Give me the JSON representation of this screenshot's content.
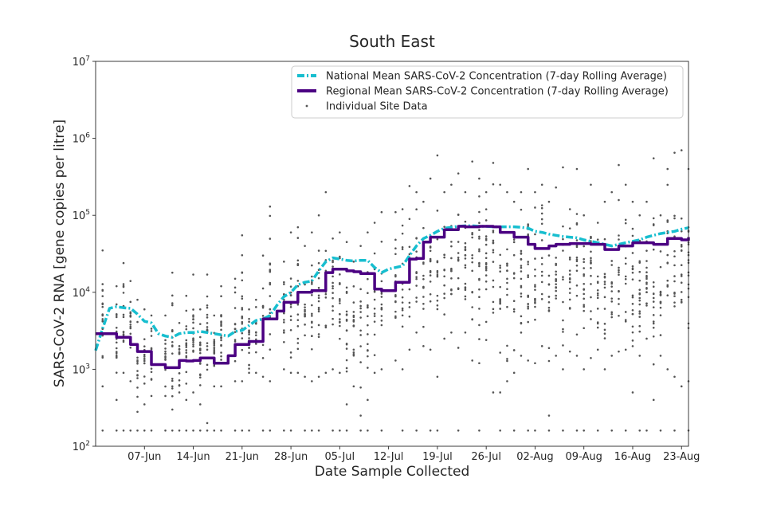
{
  "chart_data": {
    "type": "line",
    "title": "South East",
    "xlabel": "Date Sample Collected",
    "ylabel": "SARS-CoV-2 RNA [gene copies per litre]",
    "yscale": "log",
    "ylim": [
      100,
      10000000
    ],
    "y_ticks": [
      {
        "value": 100,
        "base": "10",
        "exp": "2"
      },
      {
        "value": 1000,
        "base": "10",
        "exp": "3"
      },
      {
        "value": 10000,
        "base": "10",
        "exp": "4"
      },
      {
        "value": 100000,
        "base": "10",
        "exp": "5"
      },
      {
        "value": 1000000,
        "base": "10",
        "exp": "6"
      },
      {
        "value": 10000000,
        "base": "10",
        "exp": "7"
      }
    ],
    "xlim_day": [
      0,
      85
    ],
    "x_ticks": [
      {
        "day": 7,
        "label": "07-Jun"
      },
      {
        "day": 14,
        "label": "14-Jun"
      },
      {
        "day": 21,
        "label": "21-Jun"
      },
      {
        "day": 28,
        "label": "28-Jun"
      },
      {
        "day": 35,
        "label": "05-Jul"
      },
      {
        "day": 42,
        "label": "12-Jul"
      },
      {
        "day": 49,
        "label": "19-Jul"
      },
      {
        "day": 56,
        "label": "26-Jul"
      },
      {
        "day": 63,
        "label": "02-Aug"
      },
      {
        "day": 70,
        "label": "09-Aug"
      },
      {
        "day": 77,
        "label": "16-Aug"
      },
      {
        "day": 84,
        "label": "23-Aug"
      }
    ],
    "x_note": "day 0 = 31-May",
    "legend": {
      "position": "top-right",
      "entries": [
        "National Mean SARS-CoV-2 Concentration (7-day Rolling Average)",
        "Regional Mean SARS-CoV-2 Concentration (7-day Rolling Average)",
        "Individual Site Data"
      ]
    },
    "series": [
      {
        "name": "National Mean SARS-CoV-2 Concentration (7-day Rolling Average)",
        "color": "#17becf",
        "style": "dashdot",
        "day": [
          0,
          1,
          2,
          3,
          4,
          5,
          6,
          7,
          8,
          9,
          10,
          11,
          12,
          13,
          14,
          15,
          16,
          17,
          18,
          19,
          20,
          21,
          22,
          23,
          24,
          25,
          26,
          27,
          28,
          29,
          30,
          31,
          32,
          33,
          34,
          35,
          36,
          37,
          38,
          39,
          40,
          41,
          42,
          43,
          44,
          45,
          46,
          47,
          48,
          49,
          50,
          51,
          52,
          53,
          54,
          55,
          56,
          57,
          58,
          59,
          60,
          61,
          62,
          63,
          64,
          65,
          66,
          67,
          68,
          69,
          70,
          71,
          72,
          73,
          74,
          75,
          76,
          77,
          78,
          79,
          80,
          81,
          82,
          83,
          84,
          85
        ],
        "values": [
          1750,
          3400,
          6200,
          6500,
          6300,
          6200,
          5200,
          4200,
          4000,
          2900,
          2700,
          2600,
          2900,
          3000,
          3000,
          3100,
          3000,
          2900,
          2800,
          2700,
          3100,
          3200,
          3700,
          4300,
          4500,
          5000,
          6800,
          8800,
          10000,
          12500,
          13500,
          14000,
          19000,
          25000,
          28000,
          27000,
          26000,
          25500,
          26000,
          26000,
          21000,
          18000,
          20000,
          21000,
          22000,
          30000,
          40000,
          50000,
          55000,
          62000,
          68000,
          70000,
          72000,
          73000,
          73000,
          72000,
          72000,
          71000,
          71000,
          71000,
          71000,
          70000,
          68000,
          62000,
          60000,
          57000,
          55000,
          53000,
          52000,
          51000,
          48000,
          46000,
          44000,
          42000,
          40000,
          42000,
          44000,
          46000,
          48000,
          52000,
          55000,
          58000,
          60000,
          62000,
          66000,
          69000
        ]
      },
      {
        "name": "Regional Mean SARS-CoV-2 Concentration (7-day Rolling Average)",
        "color": "#4b0082",
        "style": "solid",
        "day": [
          0,
          1,
          2,
          3,
          4,
          5,
          6,
          7,
          8,
          9,
          10,
          11,
          12,
          13,
          14,
          15,
          16,
          17,
          18,
          19,
          20,
          21,
          22,
          23,
          24,
          25,
          26,
          27,
          28,
          29,
          30,
          31,
          32,
          33,
          34,
          35,
          36,
          37,
          38,
          39,
          40,
          41,
          42,
          43,
          44,
          45,
          46,
          47,
          48,
          49,
          50,
          51,
          52,
          53,
          54,
          55,
          56,
          57,
          58,
          59,
          60,
          61,
          62,
          63,
          64,
          65,
          66,
          67,
          68,
          69,
          70,
          71,
          72,
          73,
          74,
          75,
          76,
          77,
          78,
          79,
          80,
          81,
          82,
          83,
          84,
          85
        ],
        "values": [
          2900,
          2900,
          2900,
          2600,
          2600,
          2100,
          1700,
          1700,
          1150,
          1150,
          1050,
          1050,
          1300,
          1280,
          1300,
          1400,
          1400,
          1200,
          1200,
          1500,
          2100,
          2100,
          2300,
          2300,
          4500,
          4500,
          5700,
          7400,
          7400,
          10000,
          10000,
          10500,
          10500,
          18000,
          20000,
          20000,
          19000,
          18500,
          17500,
          17500,
          11000,
          10500,
          10500,
          13500,
          13500,
          27000,
          27500,
          45000,
          52000,
          52000,
          65000,
          65000,
          72000,
          71000,
          71000,
          72000,
          72000,
          71000,
          60000,
          60000,
          52000,
          52000,
          42000,
          37000,
          37000,
          40000,
          42000,
          42000,
          43000,
          43000,
          43000,
          42000,
          42000,
          36000,
          36000,
          40000,
          40000,
          44000,
          44000,
          44000,
          42000,
          42000,
          50000,
          50000,
          48000,
          52000
        ]
      },
      {
        "name": "Individual Site Data",
        "color": "#555555",
        "style": "scatter",
        "note": "many individual site samples per sampling day spanning roughly 1.6e2 to 7e5 gene copies per litre; includes a floor band at about 160 (limit of detection)",
        "columns": [
          {
            "day": 1,
            "min": 600,
            "max": 35000
          },
          {
            "day": 3,
            "min": 400,
            "max": 12000
          },
          {
            "day": 4,
            "min": 900,
            "max": 24000
          },
          {
            "day": 5,
            "min": 700,
            "max": 14000
          },
          {
            "day": 6,
            "min": 280,
            "max": 8000
          },
          {
            "day": 7,
            "min": 350,
            "max": 6000
          },
          {
            "day": 8,
            "min": 450,
            "max": 5000
          },
          {
            "day": 10,
            "min": 450,
            "max": 5000
          },
          {
            "day": 11,
            "min": 300,
            "max": 18000
          },
          {
            "day": 12,
            "min": 500,
            "max": 4000
          },
          {
            "day": 13,
            "min": 400,
            "max": 9000
          },
          {
            "day": 14,
            "min": 500,
            "max": 17000
          },
          {
            "day": 15,
            "min": 350,
            "max": 6000
          },
          {
            "day": 16,
            "min": 200,
            "max": 17000
          },
          {
            "day": 17,
            "min": 600,
            "max": 5000
          },
          {
            "day": 18,
            "min": 600,
            "max": 12000
          },
          {
            "day": 20,
            "min": 700,
            "max": 15000
          },
          {
            "day": 21,
            "min": 700,
            "max": 55000
          },
          {
            "day": 22,
            "min": 900,
            "max": 6000
          },
          {
            "day": 23,
            "min": 900,
            "max": 8000
          },
          {
            "day": 24,
            "min": 800,
            "max": 30000
          },
          {
            "day": 25,
            "min": 700,
            "max": 130000
          },
          {
            "day": 27,
            "min": 1000,
            "max": 25000
          },
          {
            "day": 28,
            "min": 900,
            "max": 60000
          },
          {
            "day": 29,
            "min": 900,
            "max": 70000
          },
          {
            "day": 30,
            "min": 800,
            "max": 40000
          },
          {
            "day": 31,
            "min": 700,
            "max": 60000
          },
          {
            "day": 32,
            "min": 800,
            "max": 100000
          },
          {
            "day": 33,
            "min": 900,
            "max": 200000
          },
          {
            "day": 34,
            "min": 1000,
            "max": 50000
          },
          {
            "day": 35,
            "min": 900,
            "max": 60000
          },
          {
            "day": 36,
            "min": 350,
            "max": 45000
          },
          {
            "day": 37,
            "min": 600,
            "max": 25000
          },
          {
            "day": 38,
            "min": 250,
            "max": 40000
          },
          {
            "day": 39,
            "min": 400,
            "max": 60000
          },
          {
            "day": 40,
            "min": 900,
            "max": 80000
          },
          {
            "day": 41,
            "min": 1000,
            "max": 110000
          },
          {
            "day": 43,
            "min": 1300,
            "max": 110000
          },
          {
            "day": 44,
            "min": 1000,
            "max": 120000
          },
          {
            "day": 45,
            "min": 1800,
            "max": 240000
          },
          {
            "day": 46,
            "min": 3000,
            "max": 200000
          },
          {
            "day": 47,
            "min": 2000,
            "max": 150000
          },
          {
            "day": 48,
            "min": 1800,
            "max": 300000
          },
          {
            "day": 49,
            "min": 800,
            "max": 600000
          },
          {
            "day": 50,
            "min": 2500,
            "max": 200000
          },
          {
            "day": 51,
            "min": 3000,
            "max": 250000
          },
          {
            "day": 52,
            "min": 1900,
            "max": 350000
          },
          {
            "day": 53,
            "min": 3000,
            "max": 200000
          },
          {
            "day": 54,
            "min": 1300,
            "max": 500000
          },
          {
            "day": 55,
            "min": 1200,
            "max": 300000
          },
          {
            "day": 56,
            "min": 2400,
            "max": 200000
          },
          {
            "day": 57,
            "min": 500,
            "max": 480000
          },
          {
            "day": 58,
            "min": 500,
            "max": 250000
          },
          {
            "day": 59,
            "min": 700,
            "max": 200000
          },
          {
            "day": 60,
            "min": 900,
            "max": 150000
          },
          {
            "day": 61,
            "min": 1500,
            "max": 200000
          },
          {
            "day": 62,
            "min": 1300,
            "max": 400000
          },
          {
            "day": 63,
            "min": 1200,
            "max": 200000
          },
          {
            "day": 64,
            "min": 2000,
            "max": 250000
          },
          {
            "day": 65,
            "min": 250,
            "max": 150000
          },
          {
            "day": 66,
            "min": 1500,
            "max": 230000
          },
          {
            "day": 67,
            "min": 1000,
            "max": 420000
          },
          {
            "day": 68,
            "min": 1700,
            "max": 120000
          },
          {
            "day": 69,
            "min": 1500,
            "max": 400000
          },
          {
            "day": 70,
            "min": 1000,
            "max": 100000
          },
          {
            "day": 71,
            "min": 1400,
            "max": 250000
          },
          {
            "day": 72,
            "min": 1800,
            "max": 80000
          },
          {
            "day": 73,
            "min": 1000,
            "max": 150000
          },
          {
            "day": 74,
            "min": 1500,
            "max": 200000
          },
          {
            "day": 75,
            "min": 1700,
            "max": 450000
          },
          {
            "day": 76,
            "min": 1800,
            "max": 250000
          },
          {
            "day": 77,
            "min": 500,
            "max": 150000
          },
          {
            "day": 78,
            "min": 1500,
            "max": 100000
          },
          {
            "day": 79,
            "min": 2500,
            "max": 150000
          },
          {
            "day": 80,
            "min": 400,
            "max": 550000
          },
          {
            "day": 81,
            "min": 1500,
            "max": 100000
          },
          {
            "day": 82,
            "min": 1000,
            "max": 400000
          },
          {
            "day": 83,
            "min": 800,
            "max": 650000
          },
          {
            "day": 84,
            "min": 600,
            "max": 700000
          },
          {
            "day": 85,
            "min": 700,
            "max": 400000
          }
        ],
        "lod_value": 160,
        "lod_days": [
          1,
          3,
          4,
          5,
          6,
          7,
          8,
          10,
          11,
          12,
          13,
          14,
          15,
          16,
          17,
          18,
          20,
          21,
          22,
          24,
          25,
          27,
          28,
          30,
          31,
          32,
          34,
          35,
          36,
          38,
          39,
          41,
          44,
          46,
          48,
          49,
          52,
          55,
          58,
          60,
          62,
          63,
          65,
          67,
          69,
          70,
          72,
          74,
          76,
          78,
          79,
          81,
          83,
          85
        ]
      }
    ]
  }
}
